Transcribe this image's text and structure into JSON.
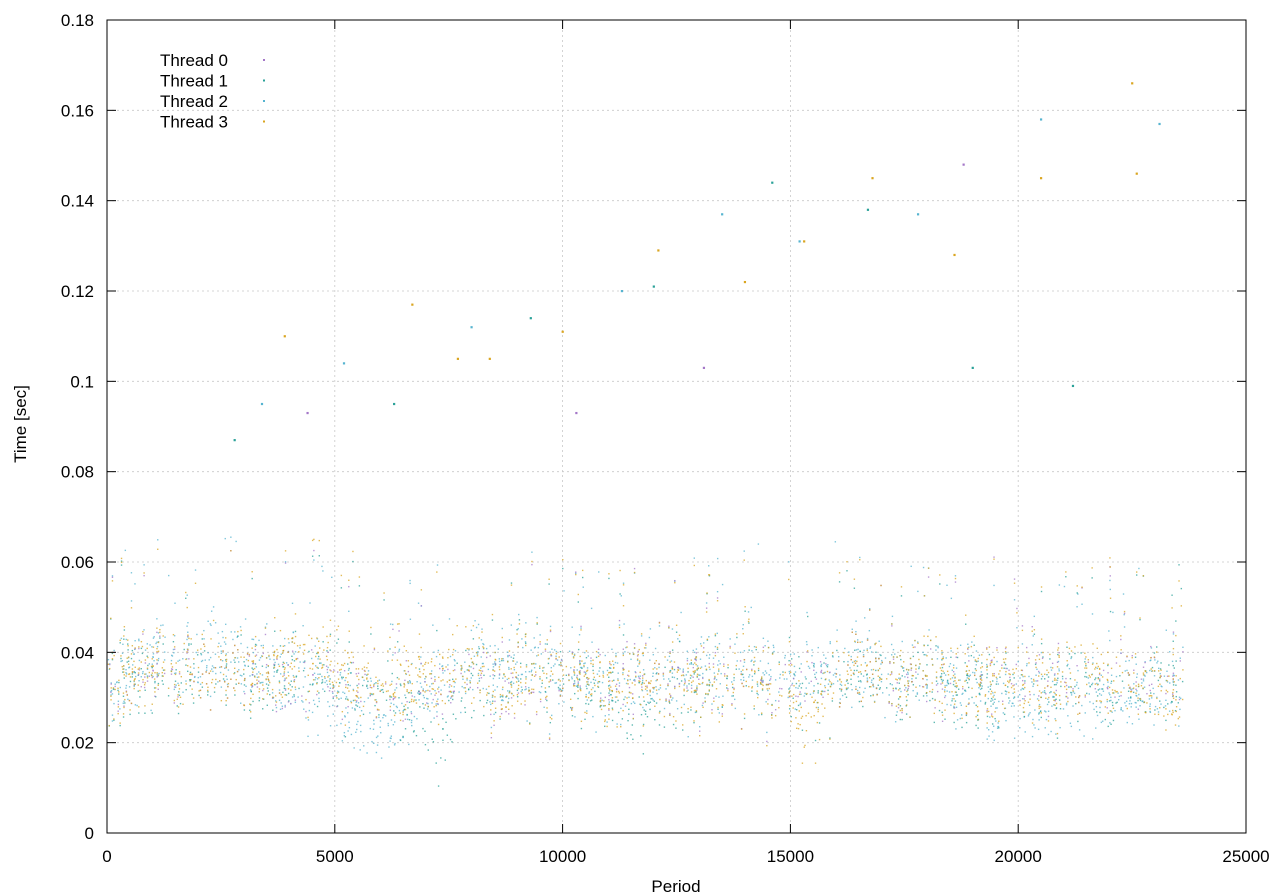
{
  "chart_data": {
    "type": "scatter",
    "title": "",
    "xlabel": "Period",
    "ylabel": "Time [sec]",
    "xlim": [
      0,
      25000
    ],
    "ylim": [
      0,
      0.18
    ],
    "xticks": [
      0,
      5000,
      10000,
      15000,
      20000,
      25000
    ],
    "xtick_labels": [
      "0",
      "5000",
      "10000",
      "15000",
      "20000",
      "25000"
    ],
    "yticks": [
      0,
      0.02,
      0.04,
      0.06,
      0.08,
      0.1,
      0.12,
      0.14,
      0.16,
      0.18
    ],
    "ytick_labels": [
      "0",
      "0.02",
      "0.04",
      "0.06",
      "0.08",
      "0.1",
      "0.12",
      "0.14",
      "0.16",
      "0.18"
    ],
    "grid": true,
    "legend_position": "top-left",
    "series": [
      {
        "name": "Thread 0",
        "color": "#a477c8",
        "x": [
          0,
          1000,
          2000,
          3000,
          4000,
          5000,
          6000,
          7000,
          8000,
          9000,
          10000,
          11000,
          12000,
          13000,
          14000,
          15000,
          16000,
          17000,
          18000,
          19000,
          20000,
          21000,
          22000,
          23000,
          23600
        ],
        "y": [
          0.034,
          0.036,
          0.037,
          0.035,
          0.036,
          0.034,
          0.033,
          0.031,
          0.035,
          0.033,
          0.036,
          0.034,
          0.035,
          0.034,
          0.035,
          0.033,
          0.036,
          0.035,
          0.034,
          0.033,
          0.035,
          0.034,
          0.033,
          0.035,
          0.034
        ]
      },
      {
        "name": "Thread 1",
        "color": "#2aa198",
        "x": [
          0,
          1000,
          2000,
          3000,
          4000,
          5000,
          6000,
          7000,
          7300,
          8000,
          9000,
          10000,
          11000,
          11500,
          12000,
          13000,
          14000,
          15000,
          16000,
          17000,
          18000,
          19000,
          20000,
          21000,
          22000,
          23000,
          23600
        ],
        "y": [
          0.033,
          0.035,
          0.036,
          0.034,
          0.035,
          0.033,
          0.032,
          0.026,
          0.021,
          0.033,
          0.035,
          0.034,
          0.031,
          0.024,
          0.032,
          0.033,
          0.034,
          0.032,
          0.034,
          0.033,
          0.034,
          0.031,
          0.033,
          0.032,
          0.032,
          0.033,
          0.034
        ]
      },
      {
        "name": "Thread 2",
        "color": "#56b4d0",
        "x": [
          0,
          1000,
          2000,
          3000,
          4000,
          5000,
          5500,
          6000,
          7000,
          8000,
          9000,
          10000,
          11000,
          12000,
          13000,
          14000,
          15000,
          16000,
          17000,
          18000,
          19000,
          19500,
          20000,
          21000,
          22000,
          23000,
          23600
        ],
        "y": [
          0.034,
          0.039,
          0.04,
          0.038,
          0.036,
          0.03,
          0.027,
          0.025,
          0.032,
          0.036,
          0.037,
          0.036,
          0.033,
          0.034,
          0.035,
          0.037,
          0.035,
          0.037,
          0.035,
          0.036,
          0.034,
          0.027,
          0.031,
          0.03,
          0.03,
          0.032,
          0.035
        ]
      },
      {
        "name": "Thread 3",
        "color": "#daa520",
        "x": [
          0,
          1000,
          2000,
          3000,
          4000,
          5000,
          6000,
          7000,
          8000,
          9000,
          10000,
          11000,
          12000,
          13000,
          14000,
          15000,
          15300,
          16000,
          17000,
          18000,
          19000,
          20000,
          21000,
          22000,
          23000,
          23600
        ],
        "y": [
          0.033,
          0.037,
          0.037,
          0.035,
          0.039,
          0.036,
          0.033,
          0.035,
          0.036,
          0.034,
          0.036,
          0.032,
          0.035,
          0.033,
          0.035,
          0.031,
          0.024,
          0.036,
          0.035,
          0.036,
          0.033,
          0.034,
          0.033,
          0.035,
          0.032,
          0.03
        ]
      }
    ],
    "outliers": [
      {
        "series": "Thread 3",
        "points": [
          [
            3900,
            0.11
          ],
          [
            6700,
            0.117
          ],
          [
            7700,
            0.105
          ],
          [
            8400,
            0.105
          ],
          [
            10000,
            0.111
          ],
          [
            12100,
            0.129
          ],
          [
            14000,
            0.122
          ],
          [
            15300,
            0.131
          ],
          [
            16800,
            0.145
          ],
          [
            18600,
            0.128
          ],
          [
            20500,
            0.145
          ],
          [
            22500,
            0.166
          ],
          [
            22600,
            0.146
          ]
        ]
      },
      {
        "series": "Thread 2",
        "points": [
          [
            3400,
            0.095
          ],
          [
            5200,
            0.104
          ],
          [
            8000,
            0.112
          ],
          [
            11300,
            0.12
          ],
          [
            13500,
            0.137
          ],
          [
            15200,
            0.131
          ],
          [
            17800,
            0.137
          ],
          [
            20500,
            0.158
          ],
          [
            23100,
            0.157
          ]
        ]
      },
      {
        "series": "Thread 1",
        "points": [
          [
            2800,
            0.087
          ],
          [
            6300,
            0.095
          ],
          [
            9300,
            0.114
          ],
          [
            12000,
            0.121
          ],
          [
            14600,
            0.144
          ],
          [
            16700,
            0.138
          ],
          [
            19000,
            0.103
          ],
          [
            21200,
            0.099
          ]
        ]
      },
      {
        "series": "Thread 0",
        "points": [
          [
            4400,
            0.093
          ],
          [
            10300,
            0.093
          ],
          [
            13100,
            0.103
          ],
          [
            18800,
            0.148
          ]
        ]
      }
    ]
  }
}
